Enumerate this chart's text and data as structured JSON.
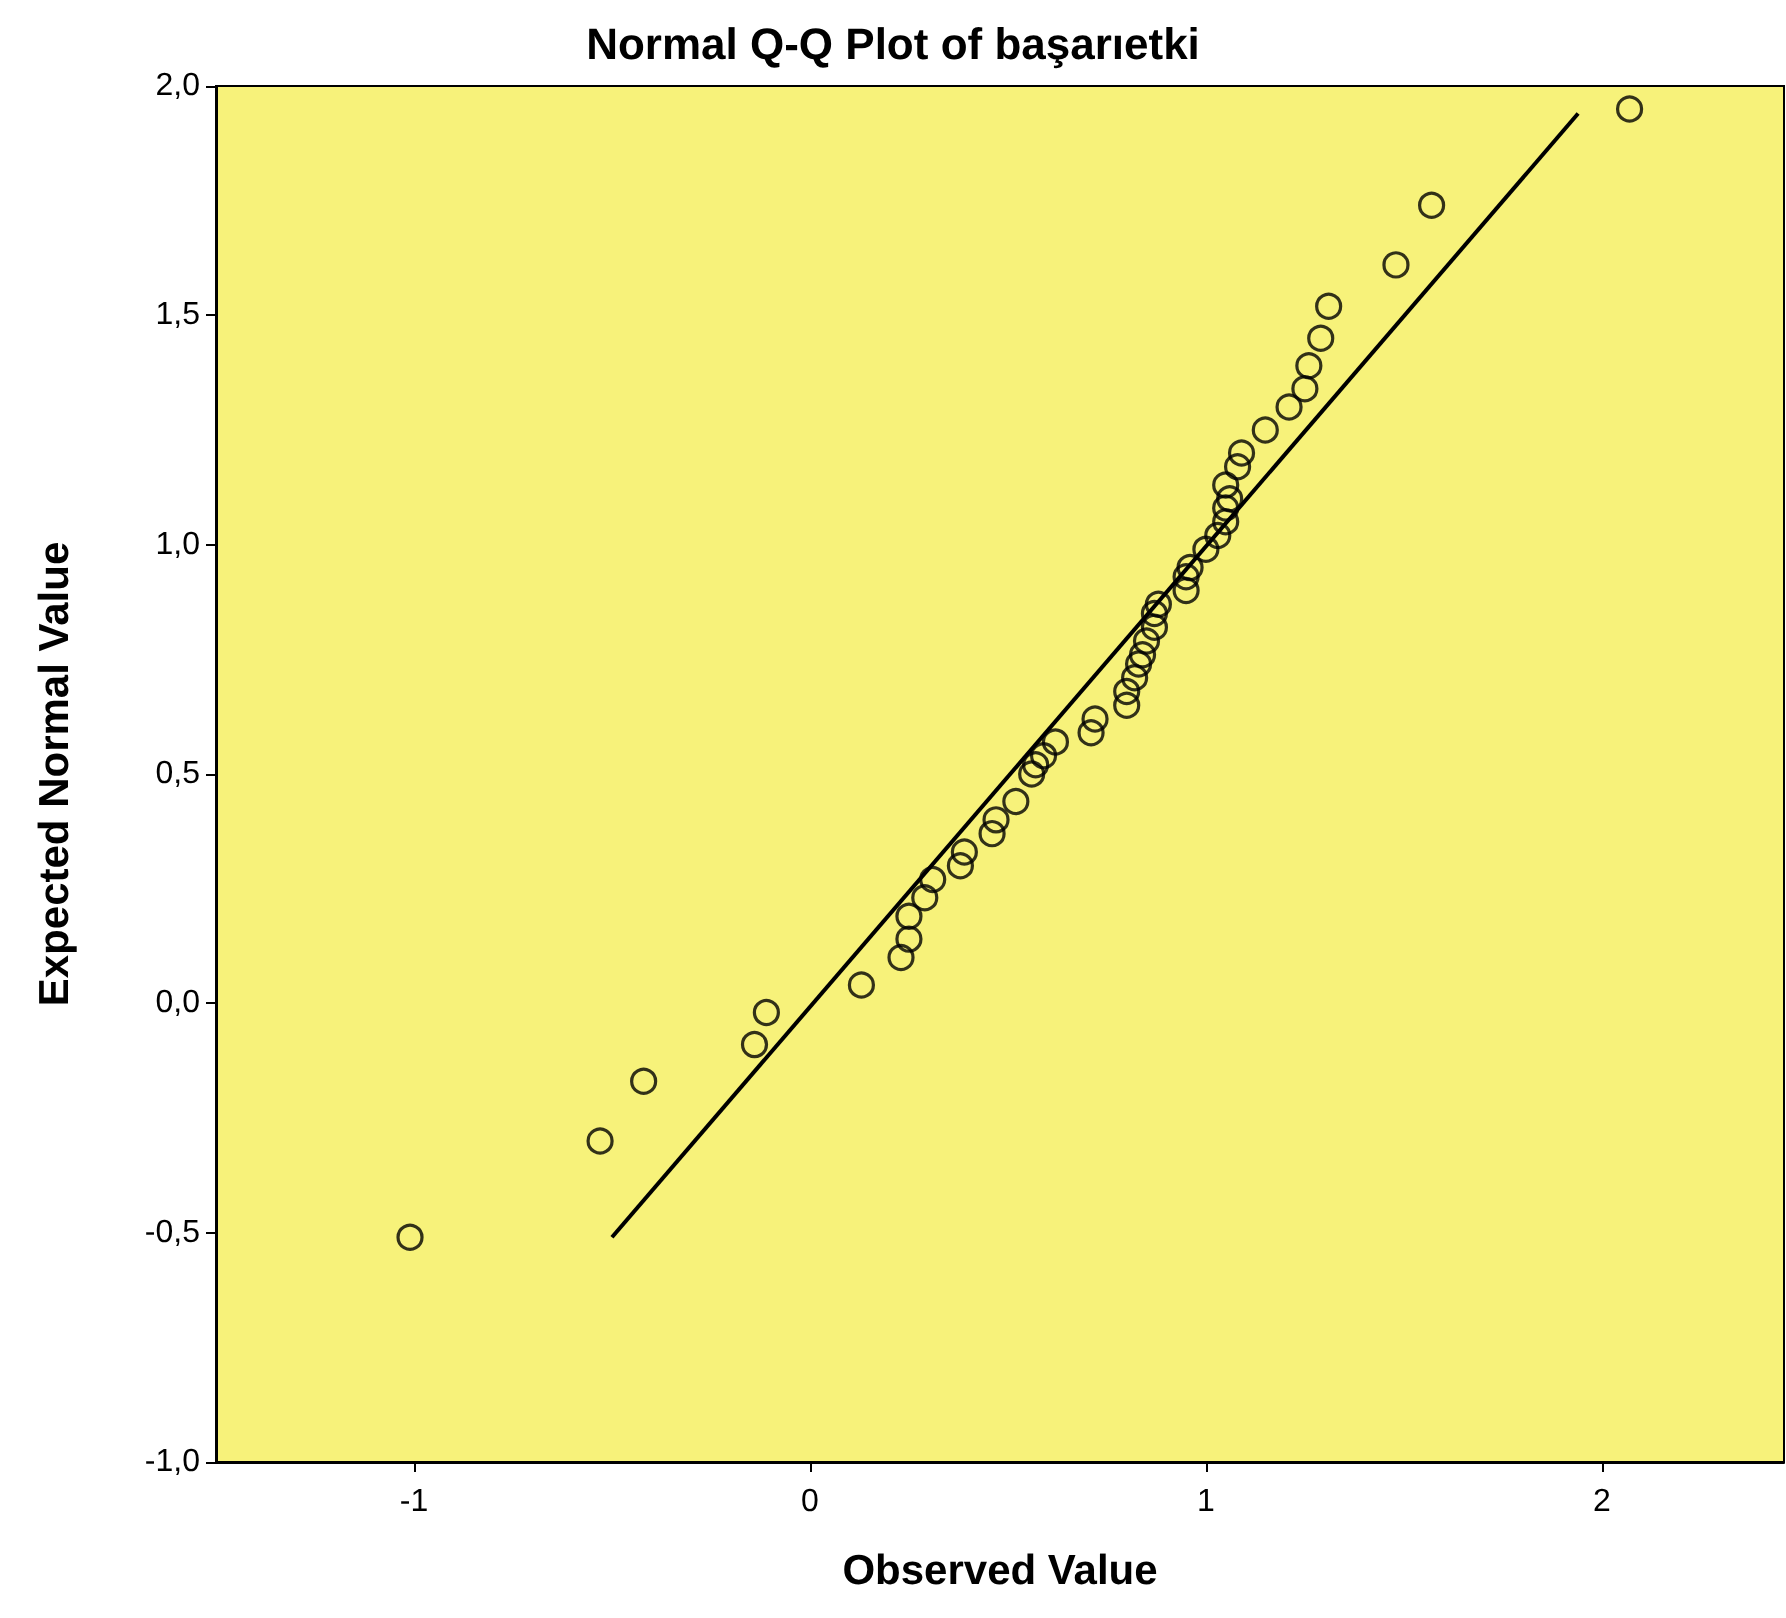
{
  "chart_data": {
    "type": "scatter",
    "title": "Normal Q-Q Plot of başarıetki",
    "xlabel": "Observed Value",
    "ylabel": "Expected Normal Value",
    "xlim": [
      -1.5,
      2.46
    ],
    "xticks": [
      -1,
      0,
      1,
      2
    ],
    "ylim": [
      -1,
      2
    ],
    "yticks": [
      {
        "value": -1,
        "label": "-1,0"
      },
      {
        "value": -0.5,
        "label": "-0,5"
      },
      {
        "value": 0,
        "label": "0,0"
      },
      {
        "value": 0.5,
        "label": "0,5"
      },
      {
        "value": 1,
        "label": "1,0"
      },
      {
        "value": 1.5,
        "label": "1,5"
      },
      {
        "value": 2,
        "label": "2,0"
      }
    ],
    "grid": false,
    "marker": "circle",
    "series": [
      {
        "color": "#000000",
        "x": [
          -1.01,
          -0.53,
          -0.42,
          -0.14,
          -0.11,
          0.13,
          0.23,
          0.25,
          0.25,
          0.29,
          0.31,
          0.38,
          0.39,
          0.46,
          0.47,
          0.52,
          0.56,
          0.57,
          0.59,
          0.62,
          0.71,
          0.72,
          0.8,
          0.8,
          0.82,
          0.83,
          0.84,
          0.85,
          0.87,
          0.87,
          0.88,
          0.95,
          0.95,
          0.96,
          1.0,
          1.03,
          1.05,
          1.05,
          1.06,
          1.05,
          1.08,
          1.09,
          1.15,
          1.21,
          1.25,
          1.26,
          1.29,
          1.31,
          1.48,
          1.57,
          2.07
        ],
        "values": [
          -0.51,
          -0.3,
          -0.17,
          -0.09,
          -0.02,
          0.04,
          0.1,
          0.14,
          0.19,
          0.23,
          0.27,
          0.3,
          0.33,
          0.37,
          0.4,
          0.44,
          0.5,
          0.52,
          0.54,
          0.57,
          0.59,
          0.62,
          0.65,
          0.68,
          0.71,
          0.74,
          0.76,
          0.79,
          0.82,
          0.85,
          0.87,
          0.9,
          0.93,
          0.95,
          0.99,
          1.02,
          1.05,
          1.08,
          1.1,
          1.13,
          1.17,
          1.2,
          1.25,
          1.3,
          1.34,
          1.39,
          1.45,
          1.52,
          1.61,
          1.74,
          1.95
        ]
      },
      {
        "type": "line",
        "color": "#000000",
        "marker": "none",
        "x": [
          -0.5,
          1.94
        ],
        "values": [
          -0.51,
          1.94
        ]
      }
    ]
  }
}
